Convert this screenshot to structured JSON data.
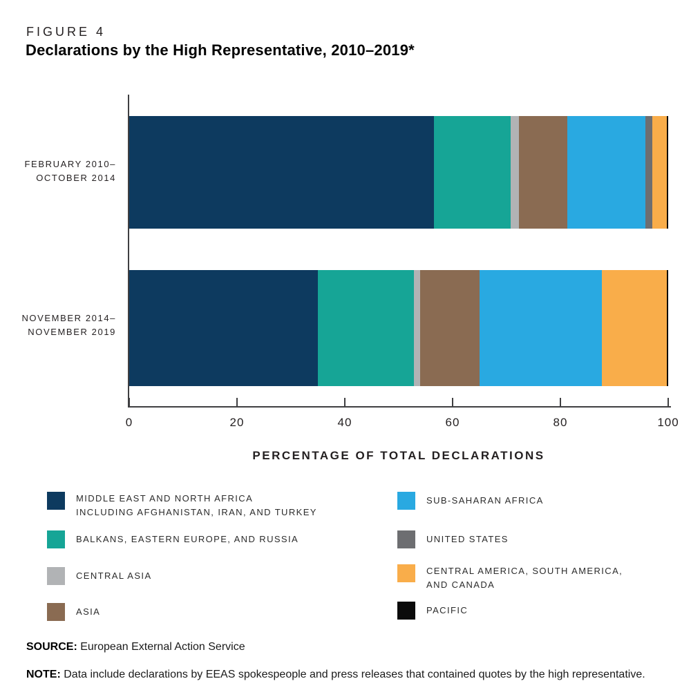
{
  "figure": {
    "label": "FIGURE 4",
    "title": "Declarations by the High Representative, 2010–2019*"
  },
  "chart_data": {
    "type": "bar",
    "orientation": "horizontal",
    "stacked": true,
    "categories": [
      "February 2010–October 2014",
      "November 2014–November 2019"
    ],
    "category_lines": [
      [
        "FEBRUARY 2010–",
        "OCTOBER 2014"
      ],
      [
        "NOVEMBER 2014–",
        "NOVEMBER 2019"
      ]
    ],
    "series": [
      {
        "name": "Middle East and North Africa including Afghanistan, Iran, and Turkey",
        "color": "#0d3a5f",
        "values": [
          56.6,
          35.0
        ]
      },
      {
        "name": "Balkans, Eastern Europe, and Russia",
        "color": "#16a596",
        "values": [
          14.2,
          17.8
        ]
      },
      {
        "name": "Central Asia",
        "color": "#b1b3b5",
        "values": [
          1.5,
          1.2
        ]
      },
      {
        "name": "Asia",
        "color": "#8a6b52",
        "values": [
          9.0,
          11.0
        ]
      },
      {
        "name": "Sub-Saharan Africa",
        "color": "#29a9e1",
        "values": [
          14.5,
          22.7
        ]
      },
      {
        "name": "United States",
        "color": "#6d6e71",
        "values": [
          1.2,
          0
        ]
      },
      {
        "name": "Central America, South America, and Canada",
        "color": "#f9ad4a",
        "values": [
          2.7,
          12.0
        ]
      },
      {
        "name": "Pacific",
        "color": "#0b0b0b",
        "values": [
          0.3,
          0.3
        ]
      }
    ],
    "xlabel": "PERCENTAGE OF TOTAL DECLARATIONS",
    "xlim": [
      0,
      100
    ],
    "xticks": [
      0,
      20,
      40,
      60,
      80,
      100
    ],
    "grid": false,
    "legend_position": "bottom"
  },
  "legend": {
    "left": [
      {
        "lines": [
          "MIDDLE EAST AND NORTH AFRICA",
          "INCLUDING AFGHANISTAN, IRAN, AND TURKEY"
        ],
        "color": "#0d3a5f"
      },
      {
        "lines": [
          "BALKANS, EASTERN EUROPE, AND RUSSIA"
        ],
        "color": "#16a596"
      },
      {
        "lines": [
          "CENTRAL ASIA"
        ],
        "color": "#b1b3b5"
      },
      {
        "lines": [
          "ASIA"
        ],
        "color": "#8a6b52"
      }
    ],
    "right": [
      {
        "lines": [
          "SUB-SAHARAN AFRICA"
        ],
        "color": "#29a9e1"
      },
      {
        "lines": [
          "UNITED STATES"
        ],
        "color": "#6d6e71"
      },
      {
        "lines": [
          "CENTRAL AMERICA, SOUTH AMERICA,",
          "AND CANADA"
        ],
        "color": "#f9ad4a"
      },
      {
        "lines": [
          "PACIFIC"
        ],
        "color": "#0b0b0b"
      }
    ]
  },
  "footer": {
    "source_label": "SOURCE:",
    "source_text": "European External Action Service",
    "note_label": "NOTE:",
    "note_text": "Data include declarations by EEAS spokespeople and press releases that contained quotes by the high representative."
  }
}
